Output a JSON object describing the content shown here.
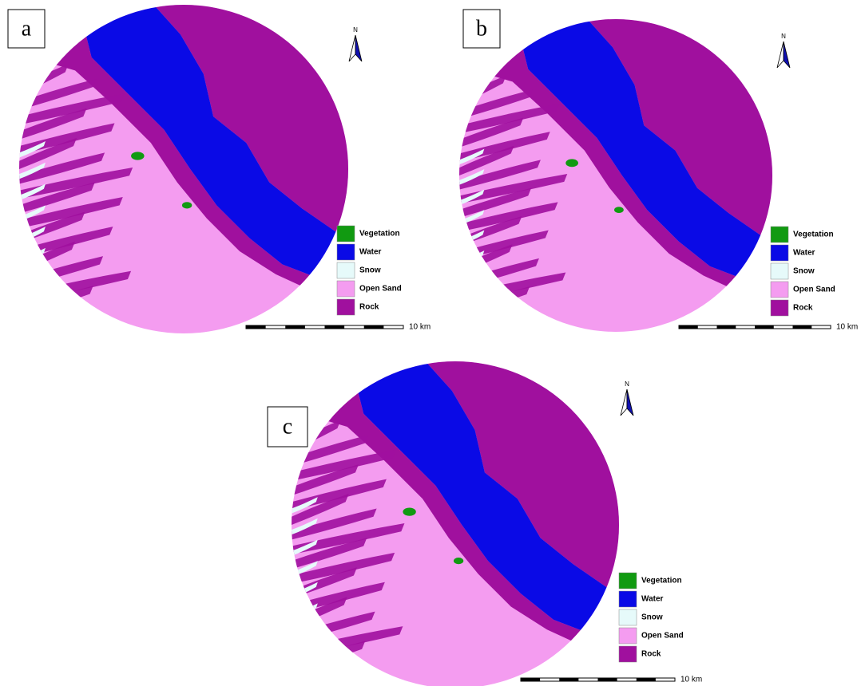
{
  "panels": [
    {
      "label": "a"
    },
    {
      "label": "b"
    },
    {
      "label": "c"
    }
  ],
  "legend": [
    {
      "label": "Vegetation",
      "color": "#119a11"
    },
    {
      "label": "Water",
      "color": "#0a0ae6"
    },
    {
      "label": "Snow",
      "color": "#e6fafa"
    },
    {
      "label": "Open Sand",
      "color": "#f49cf0"
    },
    {
      "label": "Rock",
      "color": "#a0109e"
    }
  ],
  "scale_label": "10 km",
  "north": "N"
}
